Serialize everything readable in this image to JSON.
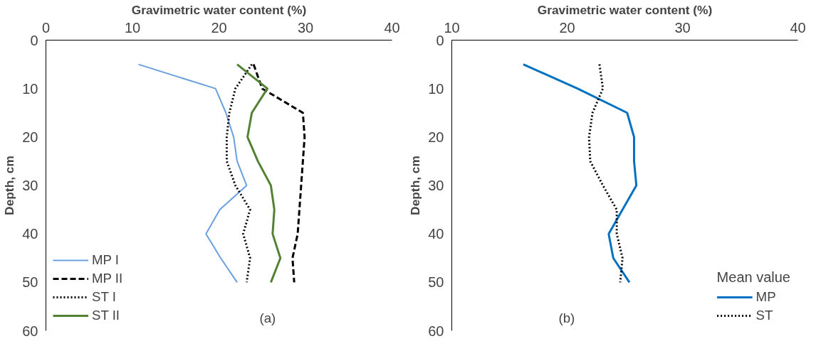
{
  "chart_data": [
    {
      "type": "line",
      "xlabel": "Gravimetric water content (%)",
      "ylabel": "Depth, cm",
      "xlim": [
        0,
        40
      ],
      "xticks": [
        0,
        10,
        20,
        30,
        40
      ],
      "ylim": [
        60,
        0
      ],
      "yticks": [
        0,
        10,
        20,
        30,
        40,
        50,
        60
      ],
      "grid": false,
      "legend": "bottom left",
      "annotations": [
        "(a)"
      ],
      "series": [
        {
          "name": "MP I",
          "color": "#6a9fe0",
          "line_style": "solid",
          "x": [
            10.7,
            19.6,
            20.8,
            21.7,
            22.1,
            23.2,
            20.1,
            18.5,
            20.2,
            22.1
          ],
          "values": [
            5,
            10,
            15,
            20,
            25,
            30,
            35,
            40,
            45,
            50
          ]
        },
        {
          "name": "MP II",
          "color": "#000000",
          "line_style": "dashed",
          "x": [
            24,
            25,
            29.7,
            29.9,
            29.7,
            29.5,
            29.3,
            29.1,
            28.5,
            28.7
          ],
          "values": [
            5,
            10,
            15,
            20,
            25,
            30,
            35,
            40,
            45,
            50
          ]
        },
        {
          "name": "ST I",
          "color": "#000000",
          "line_style": "dotted",
          "x": [
            23.8,
            21.9,
            21.2,
            20.9,
            20.9,
            21.9,
            23.6,
            22.8,
            23.6,
            23.2
          ],
          "values": [
            5,
            10,
            15,
            20,
            25,
            30,
            35,
            40,
            45,
            50
          ]
        },
        {
          "name": "ST II",
          "color": "#548235",
          "line_style": "solid",
          "x": [
            22.1,
            25.6,
            23.8,
            23.3,
            24.5,
            26,
            26.4,
            26.2,
            27.1,
            26
          ],
          "values": [
            5,
            10,
            15,
            20,
            25,
            30,
            35,
            40,
            45,
            50
          ]
        }
      ]
    },
    {
      "type": "line",
      "xlabel": "Gravimetric water content (%)",
      "ylabel": "Depth, cm",
      "xlim": [
        10,
        40
      ],
      "xticks": [
        10,
        20,
        30,
        40
      ],
      "ylim": [
        60,
        0
      ],
      "yticks": [
        0,
        10,
        20,
        30,
        40,
        50,
        60
      ],
      "grid": false,
      "legend": "bottom right",
      "legend_title": "Mean value",
      "annotations": [
        "(b)"
      ],
      "series": [
        {
          "name": "MP",
          "color": "#0070c0",
          "line_style": "solid",
          "x": [
            16.2,
            20.9,
            25.2,
            25.8,
            25.8,
            26,
            24.8,
            23.6,
            24,
            25.4
          ],
          "values": [
            5,
            10,
            15,
            20,
            25,
            30,
            35,
            40,
            45,
            50
          ]
        },
        {
          "name": "ST",
          "color": "#000000",
          "line_style": "dotted",
          "x": [
            22.8,
            23.1,
            22.2,
            21.9,
            22,
            23.1,
            24.3,
            24.3,
            24.8,
            24.6
          ],
          "values": [
            5,
            10,
            15,
            20,
            25,
            30,
            35,
            40,
            45,
            50
          ]
        }
      ]
    }
  ]
}
